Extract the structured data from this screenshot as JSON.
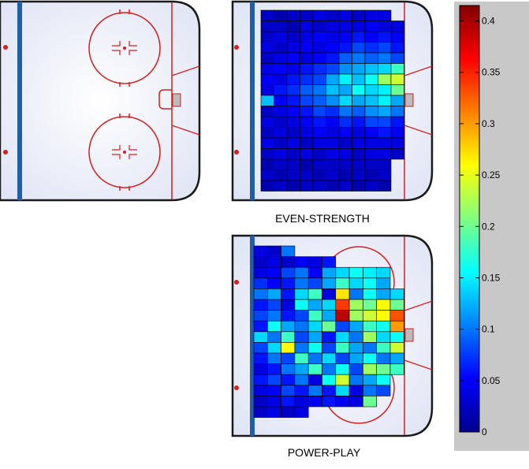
{
  "chart_data": [
    {
      "type": "heatmap",
      "panel": "left",
      "title": "",
      "rows": 0,
      "cols": 0,
      "values": []
    },
    {
      "type": "heatmap",
      "panel": "top-right",
      "title": "EVEN-STRENGTH",
      "rows": 17,
      "cols": 11,
      "values": [
        [
          0.03,
          0.02,
          0.03,
          0.03,
          0.04,
          0.03,
          0.04,
          0.03,
          0.04,
          0.04,
          null
        ],
        [
          0.03,
          0.03,
          0.02,
          0.04,
          0.03,
          0.04,
          0.04,
          0.04,
          0.05,
          0.04,
          0.04
        ],
        [
          0.03,
          0.04,
          0.03,
          0.04,
          0.05,
          0.04,
          0.05,
          0.06,
          0.05,
          0.06,
          0.05
        ],
        [
          0.04,
          0.03,
          0.04,
          0.05,
          0.04,
          0.05,
          0.06,
          0.08,
          0.07,
          0.08,
          0.06
        ],
        [
          0.03,
          0.04,
          0.05,
          0.04,
          0.05,
          0.06,
          0.09,
          0.1,
          0.09,
          0.1,
          0.08
        ],
        [
          0.04,
          0.05,
          0.04,
          0.06,
          0.07,
          0.08,
          0.11,
          0.12,
          0.13,
          0.14,
          0.18
        ],
        [
          0.05,
          0.04,
          0.06,
          0.07,
          0.08,
          0.12,
          0.15,
          0.13,
          0.16,
          0.22,
          0.24
        ],
        [
          0.04,
          0.06,
          0.07,
          0.09,
          0.1,
          0.13,
          0.12,
          0.16,
          0.14,
          0.15,
          0.2
        ],
        [
          0.13,
          0.05,
          0.06,
          0.08,
          0.09,
          0.11,
          0.14,
          0.12,
          0.13,
          0.15,
          0.12
        ],
        [
          0.03,
          0.04,
          0.05,
          0.06,
          0.08,
          0.07,
          0.1,
          0.09,
          0.11,
          0.12,
          0.1
        ],
        [
          0.04,
          0.03,
          0.04,
          0.05,
          0.06,
          0.05,
          0.07,
          0.06,
          0.08,
          0.08,
          0.06
        ],
        [
          0.03,
          0.04,
          0.03,
          0.04,
          0.05,
          0.04,
          0.05,
          0.04,
          0.05,
          0.06,
          0.05
        ],
        [
          0.04,
          0.03,
          0.04,
          0.03,
          0.04,
          0.04,
          0.03,
          0.04,
          0.04,
          0.04,
          0.04
        ],
        [
          0.03,
          0.04,
          0.03,
          0.04,
          0.03,
          0.04,
          0.04,
          0.03,
          0.04,
          0.04,
          0.03
        ],
        [
          0.02,
          0.03,
          0.03,
          0.02,
          0.03,
          0.03,
          0.03,
          0.03,
          0.03,
          0.03,
          null
        ],
        [
          0.03,
          0.02,
          0.03,
          0.03,
          0.02,
          0.03,
          0.02,
          0.03,
          0.02,
          0.03,
          null
        ],
        [
          0.02,
          0.03,
          0.02,
          0.03,
          0.03,
          0.02,
          0.03,
          0.02,
          0.03,
          0.02,
          null
        ]
      ]
    },
    {
      "type": "heatmap",
      "panel": "bottom-right",
      "title": "POWER-PLAY",
      "rows": 16,
      "cols": 11,
      "values": [
        [
          0.04,
          0.03,
          0.1,
          null,
          null,
          null,
          null,
          null,
          null,
          null,
          null
        ],
        [
          0.03,
          0.04,
          0.03,
          0.05,
          0.04,
          0.06,
          null,
          null,
          null,
          null,
          null
        ],
        [
          0.04,
          0.05,
          0.08,
          0.1,
          0.05,
          0.12,
          0.14,
          0.16,
          0.15,
          0.14,
          null
        ],
        [
          0.07,
          0.05,
          0.06,
          0.1,
          0.08,
          0.12,
          0.18,
          0.14,
          0.16,
          0.12,
          null
        ],
        [
          0.1,
          0.12,
          0.06,
          0.14,
          0.18,
          0.04,
          0.27,
          0.1,
          0.16,
          0.12,
          0.14
        ],
        [
          0.06,
          0.08,
          0.04,
          0.16,
          0.12,
          0.14,
          0.34,
          0.22,
          0.2,
          0.26,
          0.2
        ],
        [
          0.08,
          0.1,
          0.06,
          0.08,
          0.18,
          0.12,
          0.39,
          0.22,
          0.24,
          0.26,
          0.33
        ],
        [
          0.06,
          0.16,
          0.12,
          0.1,
          0.14,
          0.2,
          0.08,
          0.12,
          0.18,
          0.16,
          0.3
        ],
        [
          0.14,
          0.1,
          0.18,
          0.08,
          0.12,
          0.06,
          0.14,
          0.1,
          0.22,
          0.14,
          0.16
        ],
        [
          0.08,
          0.14,
          0.26,
          0.1,
          0.16,
          0.08,
          0.18,
          0.12,
          0.1,
          0.18,
          0.24
        ],
        [
          0.06,
          0.1,
          0.08,
          0.18,
          0.1,
          0.14,
          0.08,
          0.12,
          0.16,
          0.1,
          0.12
        ],
        [
          0.04,
          0.06,
          0.1,
          0.12,
          0.18,
          0.1,
          0.16,
          0.08,
          0.22,
          0.2,
          0.18
        ],
        [
          0.06,
          0.08,
          0.06,
          0.1,
          0.04,
          0.16,
          0.24,
          0.1,
          0.12,
          0.16,
          null
        ],
        [
          0.04,
          0.05,
          0.08,
          0.06,
          0.1,
          0.06,
          0.14,
          0.04,
          0.1,
          0.08,
          null
        ],
        [
          0.03,
          0.04,
          0.06,
          0.04,
          0.05,
          0.06,
          0.05,
          0.04,
          0.2,
          null,
          null
        ],
        [
          0.03,
          0.04,
          0.03,
          0.04,
          null,
          null,
          null,
          null,
          null,
          null,
          null
        ]
      ]
    }
  ],
  "colorbar": {
    "min": 0,
    "max": 0.415,
    "ticks": [
      "0",
      "0.05",
      "0.1",
      "0.15",
      "0.2",
      "0.25",
      "0.3",
      "0.35",
      "0.4"
    ],
    "tick_values": [
      0,
      0.05,
      0.1,
      0.15,
      0.2,
      0.25,
      0.3,
      0.35,
      0.4
    ],
    "colormap": "jet",
    "panel_color": "#c8c8c8"
  },
  "colors": {
    "ice": "#f2f3fb",
    "board": "#1a1a1a",
    "red_line": "#d22020",
    "blue_line": "#1f5fa8"
  }
}
